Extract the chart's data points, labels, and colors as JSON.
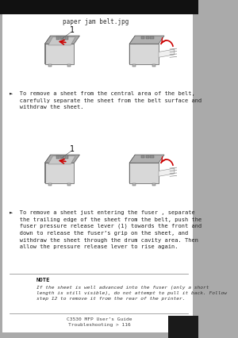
{
  "bg_color": "#ffffff",
  "page_bg": "#aaaaaa",
  "outer_page_color": "#ffffff",
  "title_label": "paper jam belt.jpg",
  "title_fontsize": 5.5,
  "title_color": "#333333",
  "bullet1_text": "►  To remove a sheet from the central area of the belt,\n   carefully separate the sheet from the belt surface and\n   withdraw the sheet.",
  "bullet2_text": "►  To remove a sheet just entering the fuser , separate\n   the trailing edge of the sheet from the belt, push the\n   fuser pressure release lever (1) towards the front and\n   down to release the fuser’s grip on the sheet, and\n   withdraw the sheet through the drum cavity area. Then\n   allow the pressure release lever to rise again.",
  "note_title": "NOTE",
  "note_text": "If the sheet is well advanced into the fuser (only a short\nlength is still visible), do not attempt to pull it back. Follow\nstep 12 to remove it from the rear of the printer.",
  "footer_text": "C3530 MFP User’s Guide\nTroubleshooting > 116",
  "text_fontsize": 5.0,
  "note_title_fontsize": 5.2,
  "note_text_fontsize": 4.5,
  "footer_fontsize": 4.5,
  "bullet_fontsize": 5.0,
  "img_label_fontsize": 7,
  "corner_color": "#1a1a1a"
}
